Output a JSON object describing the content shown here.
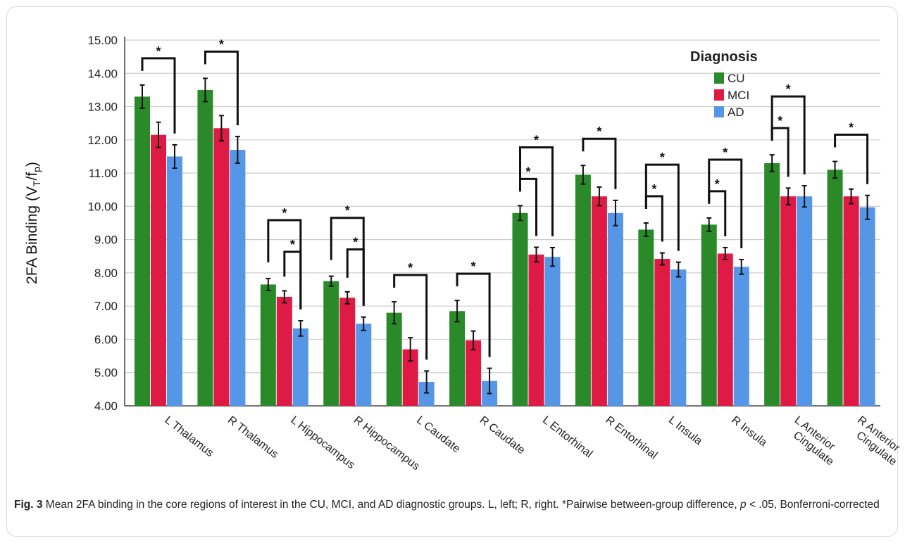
{
  "chart_data": {
    "type": "bar",
    "ylabel": "2FA Binding (V",
    "ylabel_sub1": "T",
    "ylabel_mid": "/f",
    "ylabel_sub2": "p",
    "ylabel_end": ")",
    "ylim": [
      4.0,
      15.0
    ],
    "yticks": [
      "4.00",
      "5.00",
      "6.00",
      "7.00",
      "8.00",
      "9.00",
      "10.00",
      "11.00",
      "12.00",
      "13.00",
      "14.00",
      "15.00"
    ],
    "grid": true,
    "legend_title": "Diagnosis",
    "legend_position": "top-right",
    "categories": [
      "L Thalamus",
      "R Thalamus",
      "L Hippocampus",
      "R Hippocampus",
      "L Caudate",
      "R Caudate",
      "L Entorhinal",
      "R Entorhinal",
      "L Insula",
      "R Insula",
      "L Anterior Cingulate",
      "R Anterior Cingulate"
    ],
    "category_lines": [
      [
        "L Thalamus"
      ],
      [
        "R Thalamus"
      ],
      [
        "L Hippocampus"
      ],
      [
        "R Hippocampus"
      ],
      [
        "L Caudate"
      ],
      [
        "R Caudate"
      ],
      [
        "L Entorhinal"
      ],
      [
        "R Entorhinal"
      ],
      [
        "L Insula"
      ],
      [
        "R Insula"
      ],
      [
        "L Anterior",
        "Cingulate"
      ],
      [
        "R Anterior",
        "Cingulate"
      ]
    ],
    "series": [
      {
        "name": "CU",
        "color": "#2a8a2a",
        "values": [
          13.3,
          13.5,
          7.65,
          7.75,
          6.8,
          6.85,
          9.8,
          10.95,
          9.3,
          9.45,
          11.3,
          11.1
        ],
        "err": [
          0.35,
          0.35,
          0.18,
          0.15,
          0.33,
          0.32,
          0.22,
          0.28,
          0.2,
          0.2,
          0.25,
          0.25
        ]
      },
      {
        "name": "MCI",
        "color": "#de1a45",
        "values": [
          12.15,
          12.35,
          7.28,
          7.25,
          5.7,
          5.97,
          8.55,
          10.3,
          8.42,
          8.58,
          10.3,
          10.3
        ],
        "err": [
          0.38,
          0.38,
          0.18,
          0.18,
          0.35,
          0.28,
          0.22,
          0.28,
          0.18,
          0.18,
          0.25,
          0.22
        ]
      },
      {
        "name": "AD",
        "color": "#5597e6",
        "values": [
          11.5,
          11.7,
          6.33,
          6.47,
          4.72,
          4.75,
          8.48,
          9.8,
          8.1,
          8.18,
          10.3,
          9.97
        ],
        "err": [
          0.35,
          0.4,
          0.23,
          0.2,
          0.33,
          0.38,
          0.28,
          0.38,
          0.22,
          0.22,
          0.32,
          0.36
        ]
      }
    ],
    "significance": [
      {
        "category": 0,
        "from": "CU",
        "to": "AD",
        "label": "*"
      },
      {
        "category": 1,
        "from": "CU",
        "to": "AD",
        "label": "*"
      },
      {
        "category": 2,
        "from": "CU",
        "to": "AD",
        "label": "*"
      },
      {
        "category": 2,
        "from": "MCI",
        "to": "AD",
        "label": "*"
      },
      {
        "category": 3,
        "from": "CU",
        "to": "AD",
        "label": "*"
      },
      {
        "category": 3,
        "from": "MCI",
        "to": "AD",
        "label": "*"
      },
      {
        "category": 4,
        "from": "CU",
        "to": "AD",
        "label": "*"
      },
      {
        "category": 5,
        "from": "CU",
        "to": "AD",
        "label": "*"
      },
      {
        "category": 6,
        "from": "CU",
        "to": "MCI",
        "label": "*"
      },
      {
        "category": 6,
        "from": "CU",
        "to": "AD",
        "label": "*"
      },
      {
        "category": 7,
        "from": "CU",
        "to": "AD",
        "label": "*"
      },
      {
        "category": 8,
        "from": "CU",
        "to": "MCI",
        "label": "*"
      },
      {
        "category": 8,
        "from": "CU",
        "to": "AD",
        "label": "*"
      },
      {
        "category": 9,
        "from": "CU",
        "to": "MCI",
        "label": "*"
      },
      {
        "category": 9,
        "from": "CU",
        "to": "AD",
        "label": "*"
      },
      {
        "category": 10,
        "from": "CU",
        "to": "MCI",
        "label": "*"
      },
      {
        "category": 10,
        "from": "CU",
        "to": "AD",
        "label": "*"
      },
      {
        "category": 11,
        "from": "CU",
        "to": "AD",
        "label": "*"
      }
    ]
  },
  "caption": {
    "label": "Fig. 3",
    "text_before_p": "  Mean 2FA binding in the core regions of interest in the CU, MCI, and AD diagnostic groups. L, left; R, right. *Pairwise between-group difference, ",
    "p_symbol": "p",
    "text_after_p": " < .05, Bonferroni-corrected"
  }
}
